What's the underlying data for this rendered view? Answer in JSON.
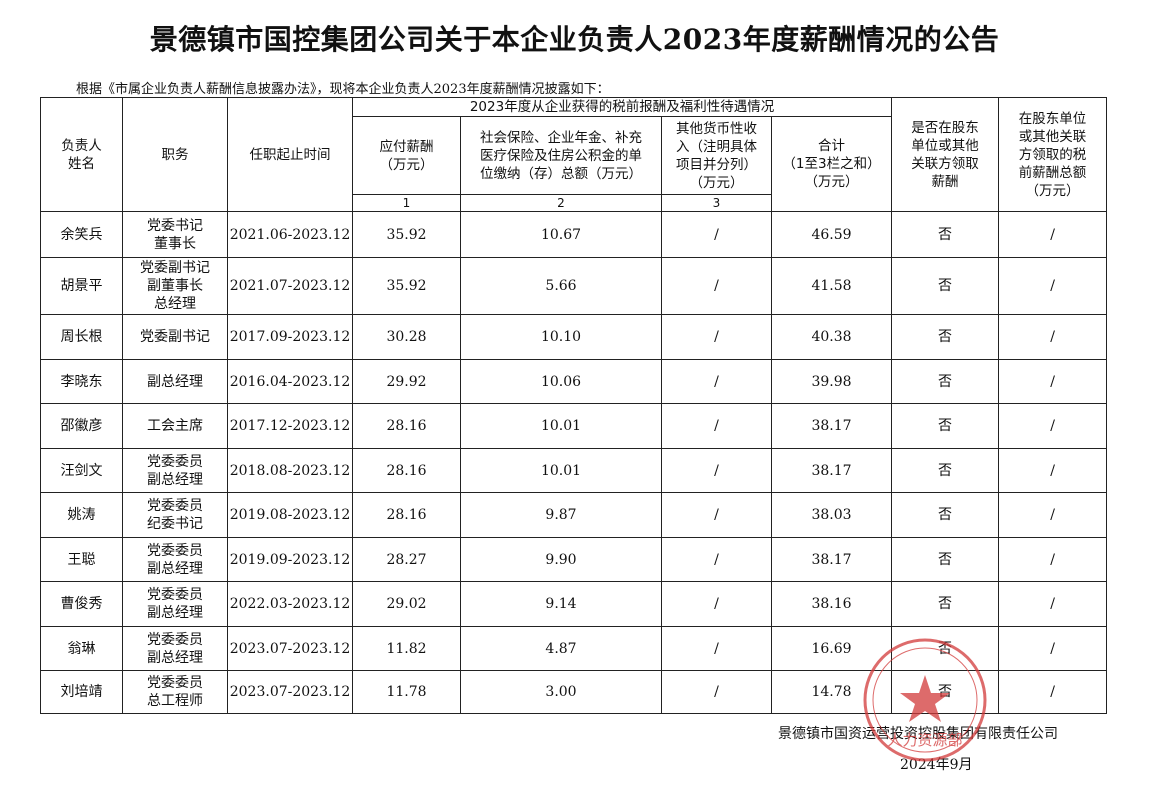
{
  "title": "景德镇市国控集团公司关于本企业负责人2023年度薪酬情况的公告",
  "intro": "根据《市属企业负责人薪酬信息披露办法》，现将本企业负责人2023年度薪酬情况披露如下：",
  "table": {
    "headers": {
      "name": [
        "负责人",
        "姓名"
      ],
      "position": "职务",
      "period": "任职起止时间",
      "group": "2023年度从企业获得的税前报酬及福利性待遇情况",
      "salary": [
        "应付薪酬",
        "（万元）"
      ],
      "insurance": [
        "社会保险、企业年金、补充",
        "医疗保险及住房公积金的单",
        "位缴纳（存）总额（万元）"
      ],
      "other": [
        "其他货币性收",
        "入（注明具体",
        "项目并分列）",
        "（万元）"
      ],
      "total": [
        "合计",
        "（1至3栏之和）",
        "（万元）"
      ],
      "shareholder": [
        "是否在股东",
        "单位或其他",
        "关联方领取",
        "薪酬"
      ],
      "shareholder_amount": [
        "在股东单位",
        "或其他关联",
        "方领取的税",
        "前薪酬总额",
        "（万元）"
      ]
    },
    "column_numbers": [
      "1",
      "2",
      "3"
    ],
    "rows": [
      [
        "余笑兵",
        [
          "党委书记",
          "董事长"
        ],
        "2021.06-2023.12",
        "35.92",
        "10.67",
        "/",
        "46.59",
        "否",
        "/"
      ],
      [
        "胡景平",
        [
          "党委副书记",
          "副董事长",
          "总经理"
        ],
        "2021.07-2023.12",
        "35.92",
        "5.66",
        "/",
        "41.58",
        "否",
        "/"
      ],
      [
        "周长根",
        [
          "党委副书记"
        ],
        "2017.09-2023.12",
        "30.28",
        "10.10",
        "/",
        "40.38",
        "否",
        "/"
      ],
      [
        "李晓东",
        [
          "副总经理"
        ],
        "2016.04-2023.12",
        "29.92",
        "10.06",
        "/",
        "39.98",
        "否",
        "/"
      ],
      [
        "邵徽彦",
        [
          "工会主席"
        ],
        "2017.12-2023.12",
        "28.16",
        "10.01",
        "/",
        "38.17",
        "否",
        "/"
      ],
      [
        "汪剑文",
        [
          "党委委员",
          "副总经理"
        ],
        "2018.08-2023.12",
        "28.16",
        "10.01",
        "/",
        "38.17",
        "否",
        "/"
      ],
      [
        "姚涛",
        [
          "党委委员",
          "纪委书记"
        ],
        "2019.08-2023.12",
        "28.16",
        "9.87",
        "/",
        "38.03",
        "否",
        "/"
      ],
      [
        "王聪",
        [
          "党委委员",
          "副总经理"
        ],
        "2019.09-2023.12",
        "28.27",
        "9.90",
        "/",
        "38.17",
        "否",
        "/"
      ],
      [
        "曹俊秀",
        [
          "党委委员",
          "副总经理"
        ],
        "2022.03-2023.12",
        "29.02",
        "9.14",
        "/",
        "38.16",
        "否",
        "/"
      ],
      [
        "翁琳",
        [
          "党委委员",
          "副总经理"
        ],
        "2023.07-2023.12",
        "11.82",
        "4.87",
        "/",
        "16.69",
        "否",
        "/"
      ],
      [
        "刘培靖",
        [
          "党委委员",
          "总工程师"
        ],
        "2023.07-2023.12",
        "11.78",
        "3.00",
        "/",
        "14.78",
        "否",
        "/"
      ]
    ]
  },
  "footer": {
    "company": "景德镇市国资运营投资控股集团有限责任公司",
    "date": "2024年9月"
  },
  "stamp": "人力资源部"
}
